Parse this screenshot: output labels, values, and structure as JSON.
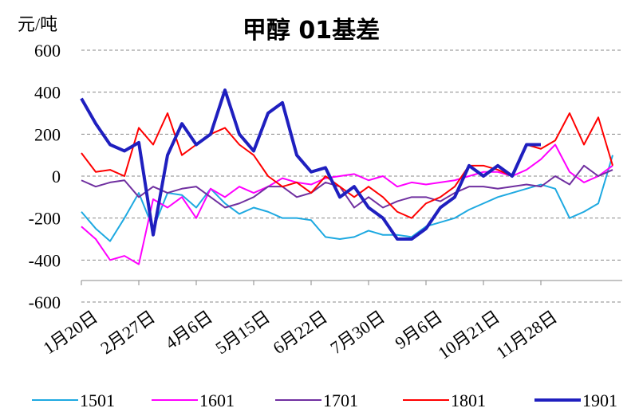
{
  "chart_data": {
    "type": "line",
    "title": "甲醇 01基差",
    "y_label": "元/吨",
    "categories": [
      "1月20日",
      null,
      null,
      null,
      "2月27日",
      null,
      null,
      null,
      "4月6日",
      null,
      null,
      null,
      "5月15日",
      null,
      null,
      null,
      "6月22日",
      null,
      null,
      null,
      "7月30日",
      null,
      null,
      null,
      "9月6日",
      null,
      null,
      null,
      "10月21日",
      null,
      null,
      null,
      "11月28日",
      null,
      null,
      null,
      null,
      null
    ],
    "ylim": [
      -600,
      600
    ],
    "yticks": [
      -600,
      -400,
      -200,
      0,
      200,
      400,
      600
    ],
    "grid": true,
    "legend": "bottom",
    "series": [
      {
        "name": "1501",
        "color": "#1ea9e1",
        "values": [
          -170,
          -250,
          -310,
          -200,
          -80,
          -250,
          -80,
          -90,
          -150,
          -60,
          -130,
          -180,
          -150,
          -170,
          -200,
          -200,
          -210,
          -290,
          -300,
          -290,
          -260,
          -280,
          -280,
          -290,
          -240,
          -220,
          -200,
          -160,
          -130,
          -100,
          -80,
          -60,
          -40,
          -60,
          -200,
          -170,
          -130,
          100
        ]
      },
      {
        "name": "1601",
        "color": "#ff00ff",
        "values": [
          -240,
          -300,
          -400,
          -380,
          -420,
          -110,
          -150,
          -100,
          -200,
          -60,
          -100,
          -50,
          -80,
          -50,
          -10,
          -30,
          -40,
          -10,
          0,
          10,
          -20,
          0,
          -50,
          -30,
          -40,
          -30,
          -20,
          0,
          20,
          20,
          0,
          30,
          80,
          150,
          20,
          -30,
          0,
          50
        ]
      },
      {
        "name": "1701",
        "color": "#7030a0",
        "values": [
          -20,
          -50,
          -30,
          -20,
          -100,
          -50,
          -80,
          -60,
          -50,
          -100,
          -150,
          -130,
          -100,
          -50,
          -50,
          -100,
          -80,
          -30,
          -50,
          -150,
          -100,
          -150,
          -120,
          -100,
          -100,
          -120,
          -80,
          -50,
          -50,
          -60,
          -50,
          -40,
          -50,
          0,
          -40,
          50,
          0,
          30
        ]
      },
      {
        "name": "1801",
        "color": "#ff0000",
        "values": [
          110,
          20,
          30,
          0,
          230,
          150,
          300,
          100,
          150,
          200,
          230,
          150,
          100,
          0,
          -50,
          -30,
          -80,
          0,
          -50,
          -100,
          -50,
          -100,
          -170,
          -200,
          -130,
          -100,
          -50,
          50,
          50,
          30,
          0,
          150,
          130,
          170,
          300,
          150,
          280,
          50
        ]
      },
      {
        "name": "1901",
        "color": "#1f1fbf",
        "values": [
          370,
          250,
          150,
          120,
          160,
          -280,
          100,
          250,
          150,
          200,
          410,
          200,
          120,
          300,
          350,
          100,
          20,
          40,
          -100,
          -50,
          -150,
          -200,
          -300,
          -300,
          -250,
          -150,
          -100,
          50,
          0,
          50,
          0,
          150,
          150,
          null,
          null,
          null,
          null,
          null
        ]
      }
    ]
  }
}
